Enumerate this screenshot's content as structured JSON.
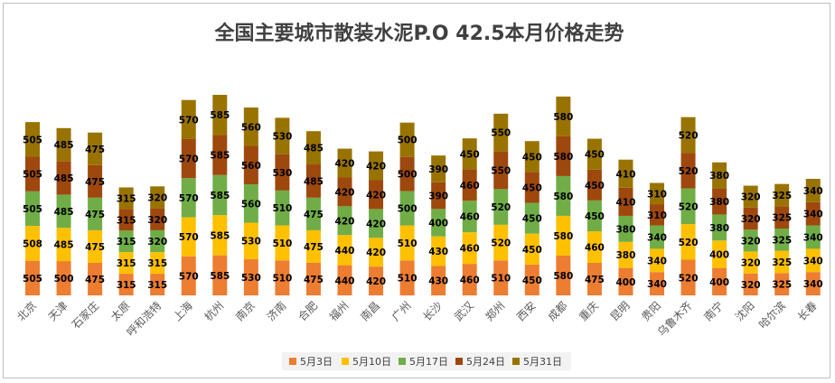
{
  "chart_data": {
    "type": "bar",
    "stacked": true,
    "title": "全国主要城市散装水泥P.O 42.5本月价格走势",
    "categories": [
      "北京",
      "天津",
      "石家庄",
      "太原",
      "呼和浩特",
      "上海",
      "杭州",
      "南京",
      "济南",
      "合肥",
      "福州",
      "南昌",
      "广州",
      "长沙",
      "武汉",
      "郑州",
      "西安",
      "成都",
      "重庆",
      "昆明",
      "贵阳",
      "乌鲁木齐",
      "南宁",
      "沈阳",
      "哈尔滨",
      "长春"
    ],
    "series": [
      {
        "name": "5月3日",
        "color": "#ED7D31",
        "values": [
          505,
          500,
          475,
          315,
          315,
          570,
          585,
          530,
          510,
          475,
          440,
          420,
          510,
          430,
          460,
          510,
          450,
          580,
          475,
          400,
          340,
          520,
          400,
          320,
          325,
          340
        ]
      },
      {
        "name": "5月10日",
        "color": "#FFC000",
        "values": [
          508,
          485,
          475,
          315,
          315,
          570,
          585,
          530,
          510,
          475,
          440,
          420,
          510,
          430,
          460,
          520,
          450,
          580,
          460,
          380,
          340,
          520,
          400,
          320,
          325,
          340
        ]
      },
      {
        "name": "5月17日",
        "color": "#70AD47",
        "values": [
          505,
          485,
          475,
          315,
          320,
          570,
          585,
          560,
          510,
          475,
          420,
          420,
          500,
          400,
          460,
          520,
          450,
          580,
          450,
          380,
          340,
          520,
          380,
          320,
          325,
          340
        ]
      },
      {
        "name": "5月24日",
        "color": "#9E480E",
        "values": [
          505,
          485,
          475,
          315,
          320,
          570,
          585,
          560,
          530,
          485,
          420,
          420,
          500,
          390,
          460,
          550,
          450,
          580,
          450,
          410,
          310,
          520,
          380,
          320,
          325,
          340
        ]
      },
      {
        "name": "5月31日",
        "color": "#997300",
        "values": [
          505,
          485,
          475,
          315,
          320,
          570,
          585,
          560,
          530,
          485,
          420,
          420,
          500,
          390,
          450,
          550,
          450,
          580,
          450,
          410,
          310,
          520,
          380,
          320,
          325,
          340
        ]
      }
    ],
    "legend": "bottom",
    "grid": false
  }
}
